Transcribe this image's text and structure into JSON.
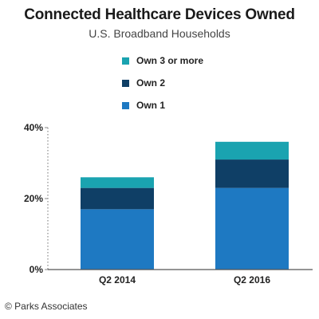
{
  "header": {
    "title": "Connected Healthcare Devices Owned",
    "subtitle": "U.S. Broadband Households"
  },
  "legend": {
    "items": [
      {
        "label": "Own 3 or more",
        "color": "#1aa3b0"
      },
      {
        "label": "Own 2",
        "color": "#0f3f66"
      },
      {
        "label": "Own 1",
        "color": "#1e79c2"
      }
    ]
  },
  "footer": {
    "credit": "© Parks Associates"
  },
  "chart_data": {
    "type": "bar",
    "stacked": true,
    "categories": [
      "Q2 2014",
      "Q2 2016"
    ],
    "series": [
      {
        "name": "Own 1",
        "values": [
          17,
          23
        ],
        "color": "#1e79c2"
      },
      {
        "name": "Own 2",
        "values": [
          6,
          8
        ],
        "color": "#0f3f66"
      },
      {
        "name": "Own 3 or more",
        "values": [
          3,
          5
        ],
        "color": "#1aa3b0"
      }
    ],
    "ylim": [
      0,
      40
    ],
    "yticks": [
      "0%",
      "20%",
      "40%"
    ],
    "ytick_values": [
      0,
      20,
      40
    ],
    "xlabel": "",
    "ylabel": "",
    "legend_position": "top",
    "grid": false
  }
}
